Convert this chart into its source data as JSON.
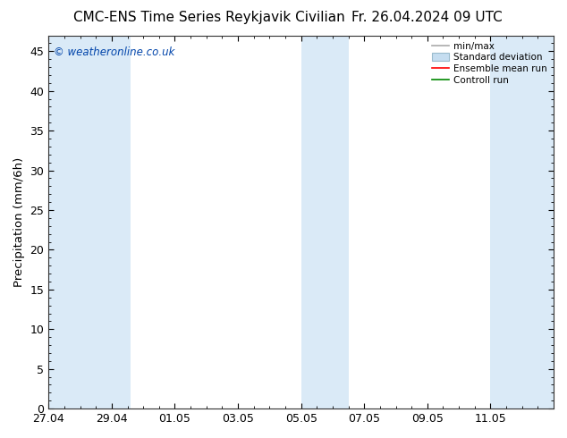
{
  "title_left": "CMC-ENS Time Series Reykjavik Civilian",
  "title_right": "Fr. 26.04.2024 09 UTC",
  "ylabel": "Precipitation (mm/6h)",
  "watermark": "© weatheronline.co.uk",
  "ylim": [
    0,
    47
  ],
  "yticks": [
    0,
    5,
    10,
    15,
    20,
    25,
    30,
    35,
    40,
    45
  ],
  "background_color": "#ffffff",
  "plot_bg_color": "#ffffff",
  "shaded_color": "#daeaf7",
  "legend_labels": [
    "min/max",
    "Standard deviation",
    "Ensemble mean run",
    "Controll run"
  ],
  "legend_colors_line": [
    "#999999",
    "#bbccdd",
    "#ff0000",
    "#008800"
  ],
  "x_tick_labels": [
    "27.04",
    "29.04",
    "01.05",
    "03.05",
    "05.05",
    "07.05",
    "09.05",
    "11.05"
  ],
  "tick_positions": [
    0,
    2,
    4,
    6,
    8,
    10,
    12,
    14
  ],
  "x_min": 0,
  "x_max": 16,
  "shaded_bands_corrected": [
    [
      0.0,
      2.0
    ],
    [
      2.0,
      2.6
    ],
    [
      8.0,
      9.5
    ],
    [
      14.0,
      16.0
    ]
  ],
  "title_fontsize": 11,
  "tick_fontsize": 9,
  "label_fontsize": 9.5
}
